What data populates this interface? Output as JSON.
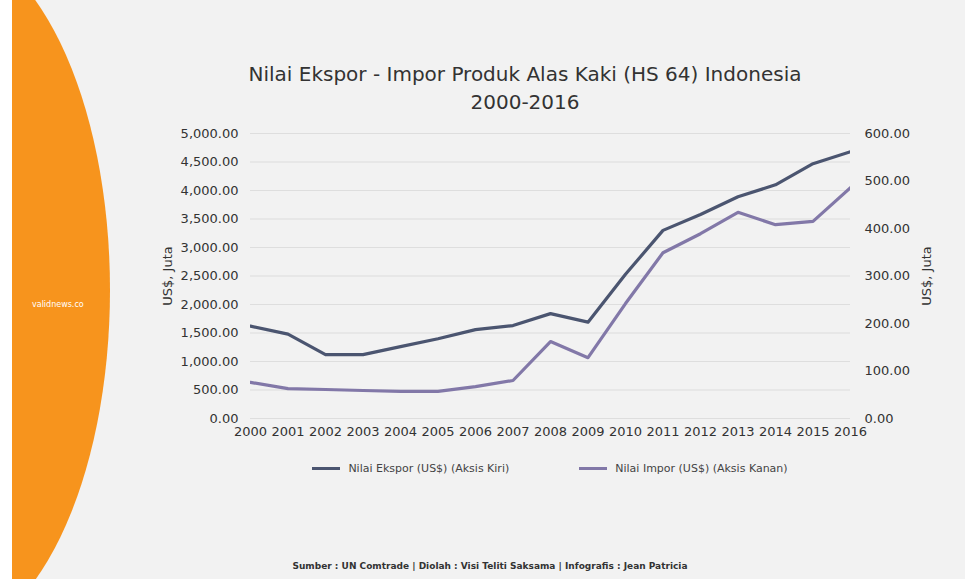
{
  "chart_data": {
    "type": "line",
    "title": "Nilai Ekspor - Impor Produk Alas Kaki (HS 64) Indonesia",
    "subtitle": "2000-2016",
    "source": "Sumber : UN Comtrade | Diolah : Visi Teliti Saksama | Infografis : Jean Patricia",
    "logo_text": "validnews.co",
    "ylabel": "US$, Juta",
    "y2label": "US$, Juta",
    "x": [
      2000,
      2001,
      2002,
      2003,
      2004,
      2005,
      2006,
      2007,
      2008,
      2009,
      2010,
      2011,
      2012,
      2013,
      2014,
      2015,
      2016
    ],
    "xlim": [
      2000,
      2016
    ],
    "xticks": [
      2000,
      2001,
      2002,
      2003,
      2004,
      2005,
      2006,
      2007,
      2008,
      2009,
      2010,
      2011,
      2012,
      2013,
      2014,
      2015,
      2016
    ],
    "ylim": [
      0,
      5000
    ],
    "yticks": [
      {
        "value": 0,
        "label": "0.00"
      },
      {
        "value": 500,
        "label": "500.00"
      },
      {
        "value": 1000,
        "label": "1,000.00"
      },
      {
        "value": 1500,
        "label": "1,500.00"
      },
      {
        "value": 2000,
        "label": "2,000.00"
      },
      {
        "value": 2500,
        "label": "2,500.00"
      },
      {
        "value": 3000,
        "label": "3,000.00"
      },
      {
        "value": 3500,
        "label": "3,500.00"
      },
      {
        "value": 4000,
        "label": "4,000.00"
      },
      {
        "value": 4500,
        "label": "4,500.00"
      },
      {
        "value": 5000,
        "label": "5,000.00"
      }
    ],
    "y2lim": [
      0,
      600
    ],
    "y2ticks": [
      {
        "value": 0,
        "label": "0.00"
      },
      {
        "value": 100,
        "label": "100.00"
      },
      {
        "value": 200,
        "label": "200.00"
      },
      {
        "value": 300,
        "label": "300.00"
      },
      {
        "value": 400,
        "label": "400.00"
      },
      {
        "value": 500,
        "label": "500.00"
      },
      {
        "value": 600,
        "label": "600.00"
      }
    ],
    "grid": true,
    "legend": "bottom",
    "series": [
      {
        "name": "Nilai Ekspor (US$) (Aksis Kiri)",
        "color": "#4b5570",
        "axis": "y",
        "values": [
          1620,
          1480,
          1120,
          1120,
          1260,
          1400,
          1560,
          1630,
          1840,
          1690,
          2530,
          3300,
          3580,
          3890,
          4100,
          4470,
          4680
        ]
      },
      {
        "name": "Nilai Impor (US$) (Aksis Kanan)",
        "color": "#8278a8",
        "axis": "y2",
        "values": [
          76,
          63,
          61,
          59,
          57,
          57,
          67,
          80,
          162,
          128,
          242,
          349,
          389,
          434,
          408,
          415,
          486
        ]
      }
    ]
  }
}
